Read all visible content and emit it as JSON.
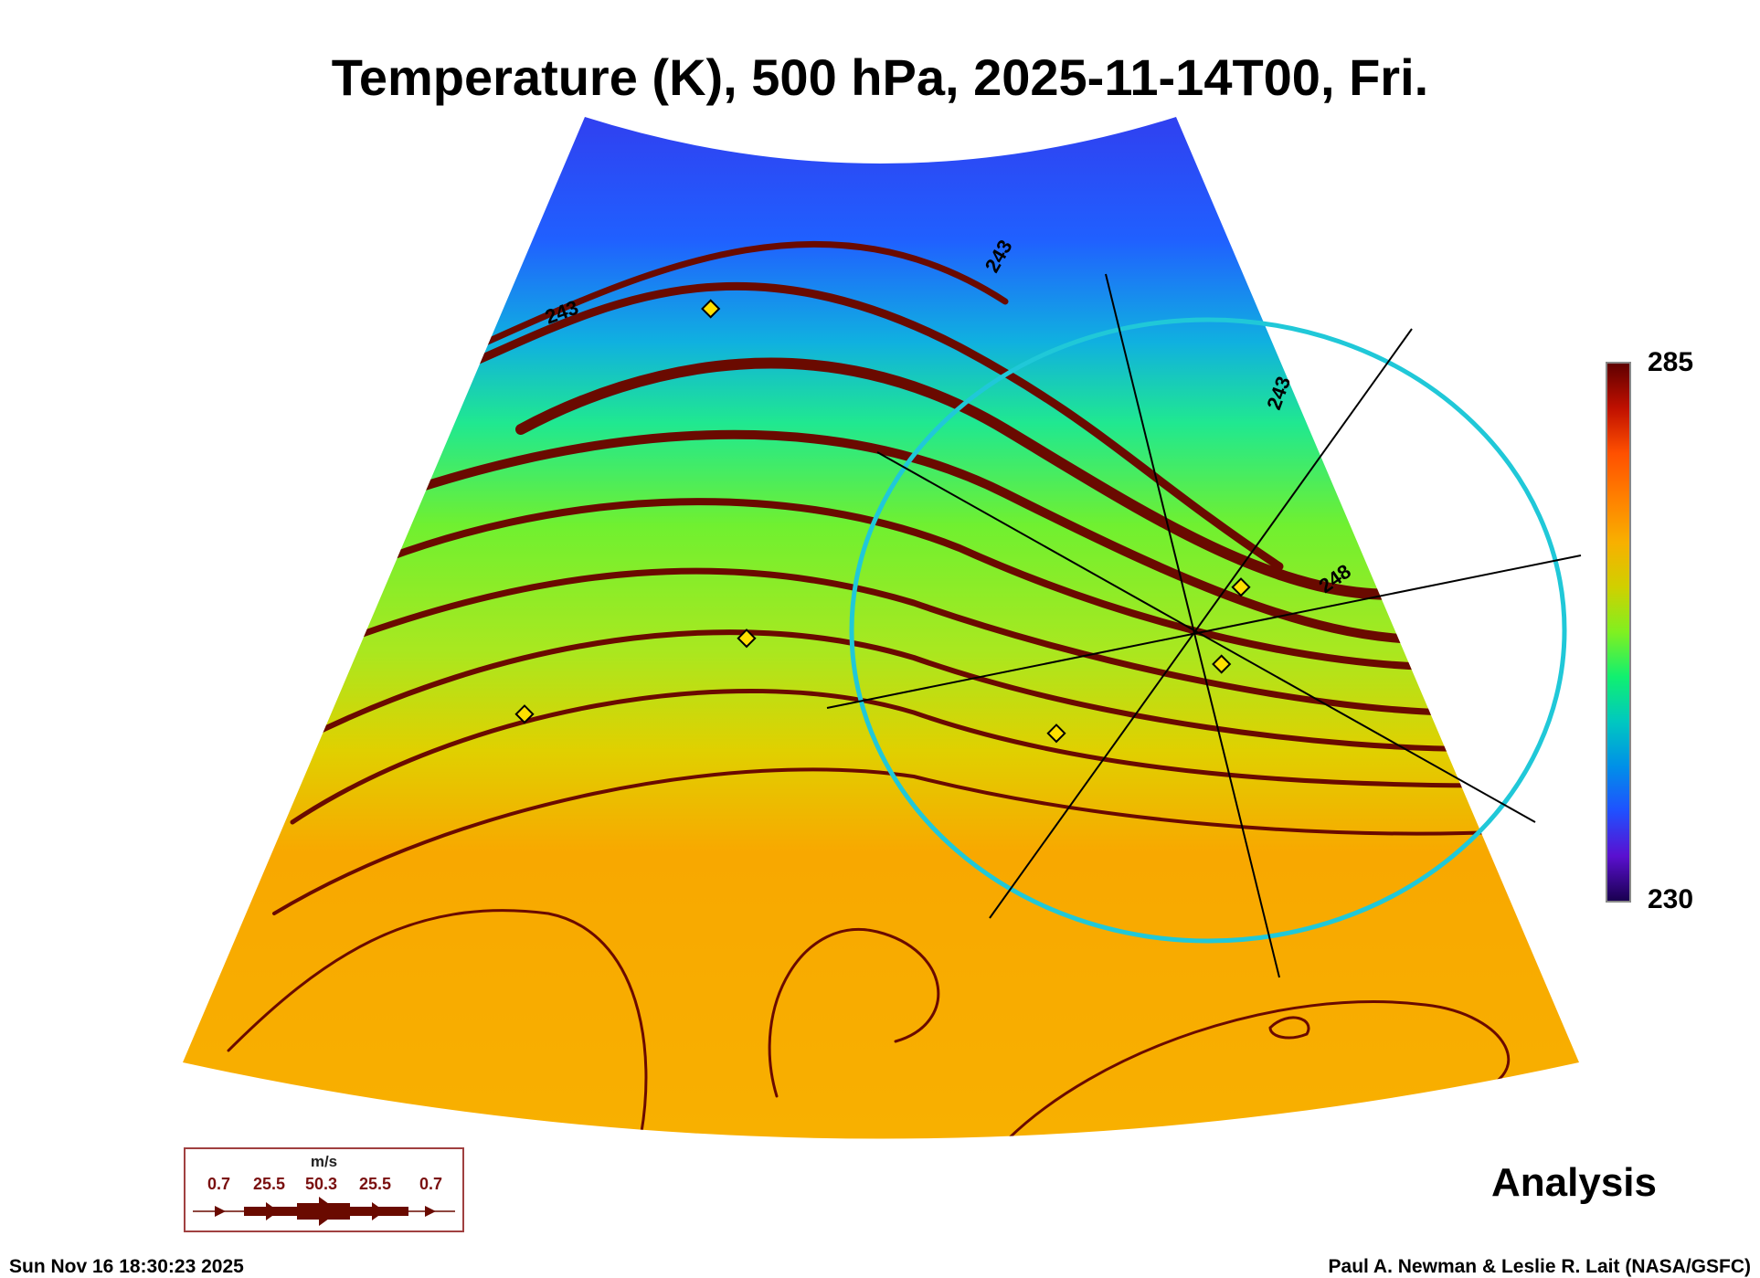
{
  "chart_data": {
    "type": "heatmap",
    "title": "Temperature (K), 500 hPa, 2025-11-14T00, Fri.",
    "variable": "Temperature (K)",
    "level": "500 hPa",
    "valid_time": "2025-11-14T00",
    "colorbar": {
      "min": 230,
      "max": 285,
      "min_label": "230",
      "max_label": "285"
    },
    "contour_labels": [
      "243",
      "243",
      "243",
      "248"
    ],
    "overlay": "streamlines (wind, m/s)",
    "wind_legend": {
      "unit": "m/s",
      "values": [
        "0.7",
        "25.5",
        "50.3",
        "25.5",
        "0.7"
      ]
    },
    "product": "Analysis"
  },
  "footer": {
    "timestamp": "Sun Nov 16 18:30:23 2025",
    "credit": "Paul A. Newman & Leslie R. Lait (NASA/GSFC)"
  },
  "colors": {
    "streamline": "#6a0a00",
    "ring": "#20c8d8",
    "marker": "#ffe000"
  }
}
